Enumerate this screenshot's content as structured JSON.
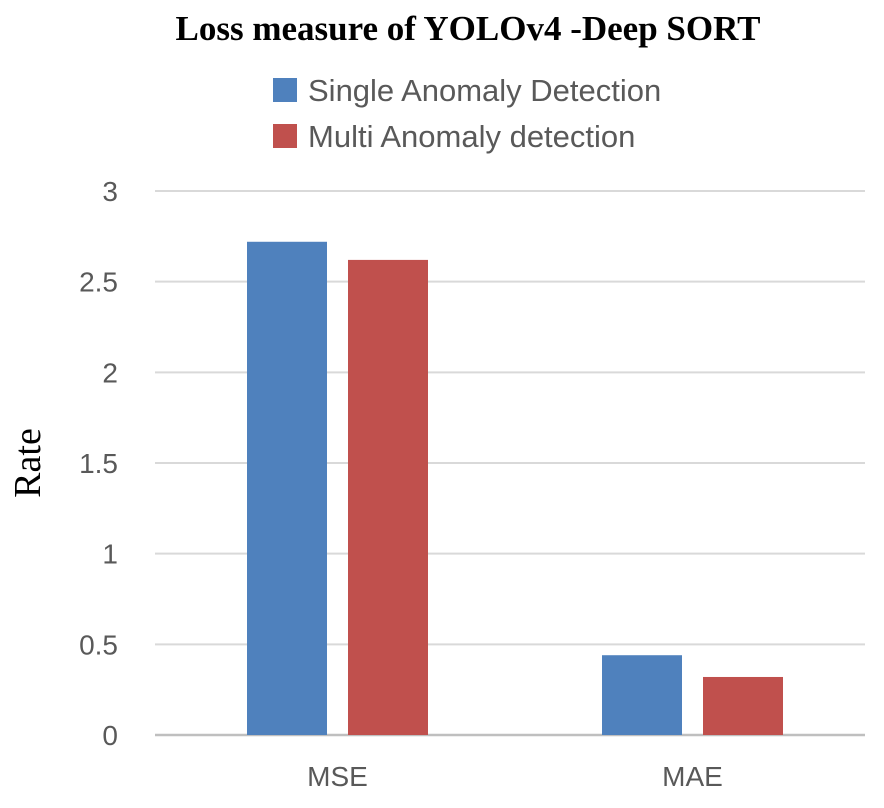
{
  "chart_data": {
    "type": "bar",
    "title": "Loss measure  of YOLOv4 -Deep SORT",
    "xlabel": "",
    "ylabel": "Rate",
    "categories": [
      "MSE",
      "MAE"
    ],
    "series": [
      {
        "name": "Single Anomaly Detection",
        "color": "#4f81bd",
        "values": [
          2.72,
          0.44
        ]
      },
      {
        "name": "Multi Anomaly detection",
        "color": "#c0504d",
        "values": [
          2.62,
          0.32
        ]
      }
    ],
    "ylim": [
      0,
      3
    ],
    "yticks": [
      "0",
      "0.5",
      "1",
      "1.5",
      "2",
      "2.5",
      "3"
    ],
    "grid": true,
    "legend_position": "top"
  }
}
